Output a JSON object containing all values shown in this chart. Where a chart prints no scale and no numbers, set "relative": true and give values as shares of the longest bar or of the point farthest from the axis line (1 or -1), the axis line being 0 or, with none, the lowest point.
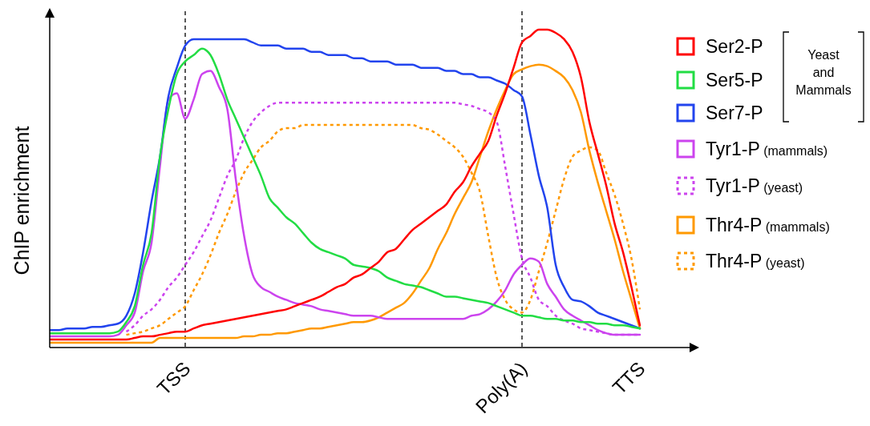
{
  "chart_data": {
    "type": "line",
    "relative": true,
    "ylabel": "ChIP enrichment",
    "categories": [
      null,
      null,
      null,
      null,
      null,
      null,
      null,
      null,
      null,
      null,
      null,
      null,
      null,
      null,
      null,
      null,
      "TSS",
      null,
      null,
      null,
      null,
      null,
      null,
      null,
      null,
      null,
      null,
      null,
      null,
      null,
      null,
      null,
      null,
      null,
      null,
      null,
      null,
      null,
      null,
      null,
      null,
      null,
      null,
      null,
      null,
      null,
      null,
      null,
      null,
      null,
      null,
      null,
      null,
      null,
      null,
      null,
      "Poly(A)",
      null,
      null,
      null,
      null,
      null,
      null,
      null,
      null,
      null,
      null,
      null,
      null,
      null,
      "TTS"
    ],
    "tick_labels": "x",
    "grid": false,
    "legend": "right",
    "marker": "none",
    "annotations": [
      "Yeast and Mammals"
    ],
    "ref_lines": [
      {
        "axis": "x",
        "value": "TSS",
        "color": "#000000",
        "line_style": "dashed"
      },
      {
        "axis": "x",
        "value": "Poly(A)",
        "color": "#000000",
        "line_style": "dashed"
      }
    ],
    "series": [
      {
        "name": "Ser2-P",
        "color": "#ff0000",
        "line_style": "solid",
        "values": [
          0.025,
          0.025,
          0.025,
          0.025,
          0.025,
          0.025,
          0.025,
          0.025,
          0.025,
          0.025,
          0.03,
          0.035,
          0.035,
          0.04,
          0.045,
          0.05,
          0.05,
          0.06,
          0.07,
          0.075,
          0.08,
          0.085,
          0.09,
          0.095,
          0.1,
          0.105,
          0.11,
          0.115,
          0.12,
          0.13,
          0.14,
          0.15,
          0.16,
          0.175,
          0.19,
          0.2,
          0.22,
          0.23,
          0.25,
          0.27,
          0.3,
          0.31,
          0.34,
          0.37,
          0.39,
          0.41,
          0.43,
          0.45,
          0.49,
          0.52,
          0.57,
          0.61,
          0.65,
          0.73,
          0.8,
          0.88,
          0.96,
          0.98,
          1,
          1,
          0.99,
          0.97,
          0.93,
          0.85,
          0.71,
          0.61,
          0.51,
          0.39,
          0.3,
          0.19,
          0.07
        ]
      },
      {
        "name": "Ser5-P",
        "color": "#22dd44",
        "line_style": "solid",
        "values": [
          0.045,
          0.045,
          0.045,
          0.045,
          0.045,
          0.045,
          0.045,
          0.045,
          0.05,
          0.08,
          0.13,
          0.26,
          0.36,
          0.6,
          0.75,
          0.86,
          0.9,
          0.92,
          0.94,
          0.92,
          0.86,
          0.78,
          0.72,
          0.66,
          0.6,
          0.54,
          0.47,
          0.44,
          0.41,
          0.39,
          0.36,
          0.33,
          0.31,
          0.3,
          0.29,
          0.28,
          0.26,
          0.255,
          0.25,
          0.24,
          0.22,
          0.21,
          0.2,
          0.195,
          0.19,
          0.18,
          0.17,
          0.16,
          0.16,
          0.155,
          0.15,
          0.145,
          0.14,
          0.13,
          0.12,
          0.11,
          0.1,
          0.1,
          0.095,
          0.09,
          0.09,
          0.085,
          0.085,
          0.08,
          0.08,
          0.075,
          0.075,
          0.07,
          0.07,
          0.065,
          0.06
        ]
      },
      {
        "name": "Ser7-P",
        "color": "#2244ee",
        "line_style": "solid",
        "values": [
          0.055,
          0.055,
          0.06,
          0.06,
          0.06,
          0.065,
          0.065,
          0.07,
          0.075,
          0.1,
          0.17,
          0.3,
          0.46,
          0.6,
          0.79,
          0.88,
          0.95,
          0.97,
          0.97,
          0.97,
          0.97,
          0.97,
          0.97,
          0.97,
          0.96,
          0.95,
          0.95,
          0.95,
          0.94,
          0.94,
          0.94,
          0.93,
          0.93,
          0.92,
          0.92,
          0.92,
          0.91,
          0.91,
          0.9,
          0.9,
          0.9,
          0.89,
          0.89,
          0.89,
          0.88,
          0.88,
          0.88,
          0.87,
          0.87,
          0.86,
          0.86,
          0.85,
          0.85,
          0.84,
          0.83,
          0.81,
          0.79,
          0.67,
          0.54,
          0.44,
          0.26,
          0.19,
          0.15,
          0.145,
          0.13,
          0.11,
          0.1,
          0.09,
          0.08,
          0.07,
          0.06
        ]
      },
      {
        "name": "Tyr1-P (mammals)",
        "color": "#cc44ee",
        "line_style": "solid",
        "values": [
          0.035,
          0.035,
          0.035,
          0.035,
          0.035,
          0.035,
          0.035,
          0.035,
          0.04,
          0.07,
          0.11,
          0.24,
          0.33,
          0.57,
          0.78,
          0.8,
          0.72,
          0.78,
          0.86,
          0.87,
          0.82,
          0.75,
          0.53,
          0.35,
          0.23,
          0.19,
          0.175,
          0.16,
          0.15,
          0.14,
          0.135,
          0.13,
          0.12,
          0.115,
          0.11,
          0.105,
          0.1,
          0.1,
          0.1,
          0.095,
          0.09,
          0.09,
          0.09,
          0.09,
          0.09,
          0.09,
          0.09,
          0.09,
          0.09,
          0.09,
          0.1,
          0.105,
          0.12,
          0.145,
          0.18,
          0.23,
          0.26,
          0.28,
          0.27,
          0.2,
          0.16,
          0.12,
          0.1,
          0.085,
          0.07,
          0.055,
          0.045,
          0.04,
          0.04,
          0.04,
          0.04
        ]
      },
      {
        "name": "Tyr1-P (yeast)",
        "color": "#cc44ee",
        "line_style": "dotted",
        "values": [
          null,
          null,
          null,
          null,
          null,
          null,
          null,
          null,
          null,
          0.05,
          0.07,
          0.1,
          0.12,
          0.15,
          0.19,
          0.22,
          0.26,
          0.3,
          0.35,
          0.4,
          0.47,
          0.54,
          0.59,
          0.66,
          0.71,
          0.74,
          0.76,
          0.77,
          0.77,
          0.77,
          0.77,
          0.77,
          0.77,
          0.77,
          0.77,
          0.77,
          0.77,
          0.77,
          0.77,
          0.77,
          0.77,
          0.77,
          0.77,
          0.77,
          0.77,
          0.77,
          0.77,
          0.77,
          0.77,
          0.765,
          0.76,
          0.75,
          0.74,
          0.71,
          0.57,
          0.42,
          0.28,
          0.22,
          0.15,
          0.13,
          0.1,
          0.085,
          0.075,
          0.06,
          0.055,
          0.05,
          0.045,
          0.04,
          0.04,
          0.04,
          0.04
        ]
      },
      {
        "name": "Thr4-P (mammals)",
        "color": "#ff9900",
        "line_style": "solid",
        "values": [
          0.015,
          0.015,
          0.015,
          0.015,
          0.015,
          0.015,
          0.015,
          0.015,
          0.015,
          0.015,
          0.015,
          0.015,
          0.015,
          0.03,
          0.03,
          0.03,
          0.03,
          0.03,
          0.03,
          0.03,
          0.03,
          0.03,
          0.03,
          0.035,
          0.035,
          0.04,
          0.04,
          0.045,
          0.045,
          0.05,
          0.055,
          0.06,
          0.06,
          0.065,
          0.07,
          0.075,
          0.08,
          0.08,
          0.085,
          0.095,
          0.11,
          0.125,
          0.14,
          0.17,
          0.21,
          0.25,
          0.31,
          0.36,
          0.42,
          0.47,
          0.52,
          0.6,
          0.68,
          0.75,
          0.81,
          0.86,
          0.875,
          0.885,
          0.89,
          0.885,
          0.87,
          0.85,
          0.81,
          0.74,
          0.62,
          0.52,
          0.43,
          0.34,
          0.24,
          0.15,
          0.06
        ]
      },
      {
        "name": "Thr4-P (yeast)",
        "color": "#ff9900",
        "line_style": "dotted",
        "values": [
          null,
          null,
          null,
          null,
          null,
          null,
          null,
          null,
          null,
          0.04,
          0.045,
          0.05,
          0.06,
          0.07,
          0.09,
          0.11,
          0.13,
          0.18,
          0.23,
          0.29,
          0.36,
          0.42,
          0.49,
          0.55,
          0.59,
          0.63,
          0.65,
          0.68,
          0.69,
          0.69,
          0.7,
          0.7,
          0.7,
          0.7,
          0.7,
          0.7,
          0.7,
          0.7,
          0.7,
          0.7,
          0.7,
          0.7,
          0.7,
          0.7,
          0.69,
          0.685,
          0.67,
          0.65,
          0.63,
          0.6,
          0.55,
          0.49,
          0.35,
          0.22,
          0.15,
          0.12,
          0.11,
          0.15,
          0.24,
          0.33,
          0.43,
          0.53,
          0.6,
          0.62,
          0.63,
          0.62,
          0.55,
          0.48,
          0.39,
          0.28,
          0.12
        ]
      }
    ]
  }
}
